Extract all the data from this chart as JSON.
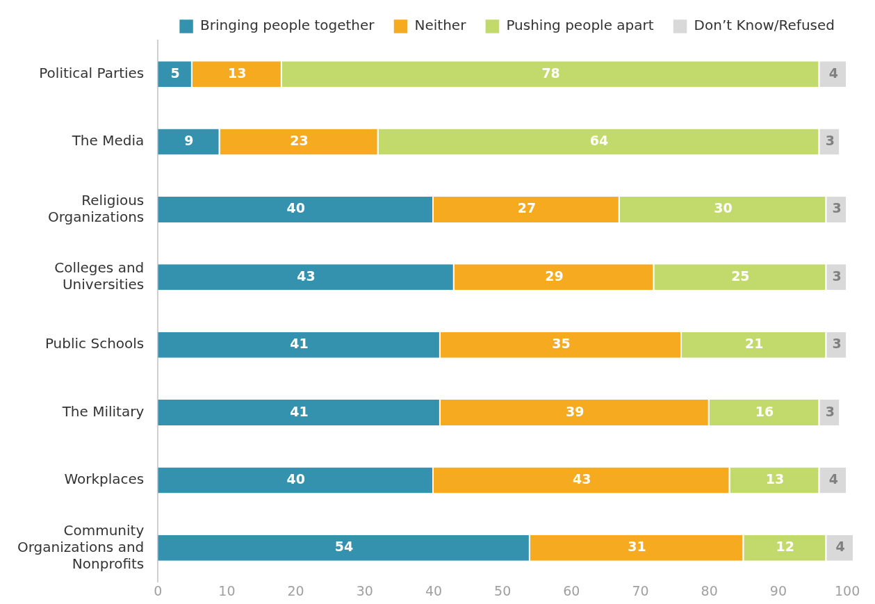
{
  "chart_data": {
    "type": "bar",
    "orientation": "horizontal",
    "stacked": true,
    "categories": [
      "Political Parties",
      "The Media",
      "Religious Organizations",
      "Colleges and Universities",
      "Public Schools",
      "The Military",
      "Workplaces",
      "Community Organizations and Nonprofits"
    ],
    "series": [
      {
        "name": "Bringing people together",
        "color": "#3592ae",
        "values": [
          5,
          9,
          40,
          43,
          41,
          41,
          40,
          54
        ]
      },
      {
        "name": "Neither",
        "color": "#f5aa1f",
        "values": [
          13,
          23,
          27,
          29,
          35,
          39,
          43,
          31
        ]
      },
      {
        "name": "Pushing people apart",
        "color": "#c2d96c",
        "values": [
          78,
          64,
          30,
          25,
          21,
          16,
          13,
          12
        ]
      },
      {
        "name": "Don’t Know/Refused",
        "color": "#d9d9d9",
        "values": [
          4,
          3,
          3,
          3,
          3,
          3,
          4,
          4
        ]
      }
    ],
    "xlim": [
      0,
      101
    ],
    "xticks": [
      0,
      10,
      20,
      30,
      40,
      50,
      60,
      70,
      80,
      90,
      100
    ],
    "grid": false,
    "legend": "top",
    "data_labels": true
  }
}
